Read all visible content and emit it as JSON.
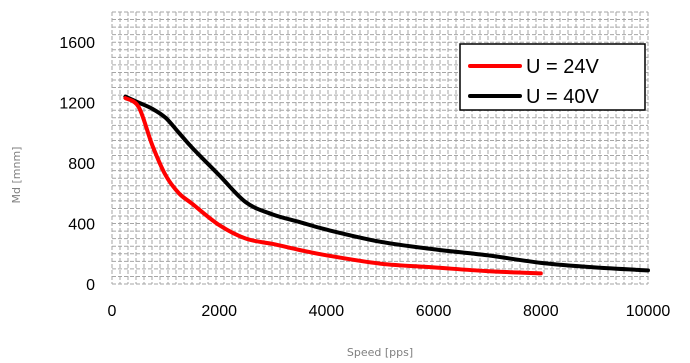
{
  "chart_data": {
    "type": "line",
    "xlabel": "Speed [pps]",
    "ylabel": "Md [mnm]",
    "xlim": [
      0,
      10000
    ],
    "ylim": [
      0,
      1800
    ],
    "xticks": [
      "0",
      "2000",
      "4000",
      "6000",
      "8000",
      "10000"
    ],
    "yticks": [
      "0",
      "400",
      "800",
      "1200",
      "1600"
    ],
    "grid": "dense dashed grid",
    "legend_position": "top-right",
    "series": [
      {
        "name": "U = 24V",
        "color": "#ff0000",
        "x": [
          250,
          500,
          750,
          1000,
          1250,
          1500,
          2000,
          2500,
          3000,
          3500,
          4000,
          5000,
          6000,
          7000,
          8000
        ],
        "y": [
          1230,
          1170,
          920,
          720,
          600,
          530,
          390,
          300,
          265,
          225,
          190,
          135,
          110,
          85,
          70
        ]
      },
      {
        "name": "U = 40V",
        "color": "#000000",
        "x": [
          250,
          500,
          750,
          1000,
          1250,
          1500,
          2000,
          2500,
          3000,
          3500,
          4000,
          5000,
          6000,
          7000,
          8000,
          9000,
          10000
        ],
        "y": [
          1240,
          1200,
          1160,
          1100,
          1000,
          900,
          720,
          540,
          460,
          410,
          360,
          280,
          230,
          190,
          140,
          110,
          90
        ]
      }
    ]
  }
}
